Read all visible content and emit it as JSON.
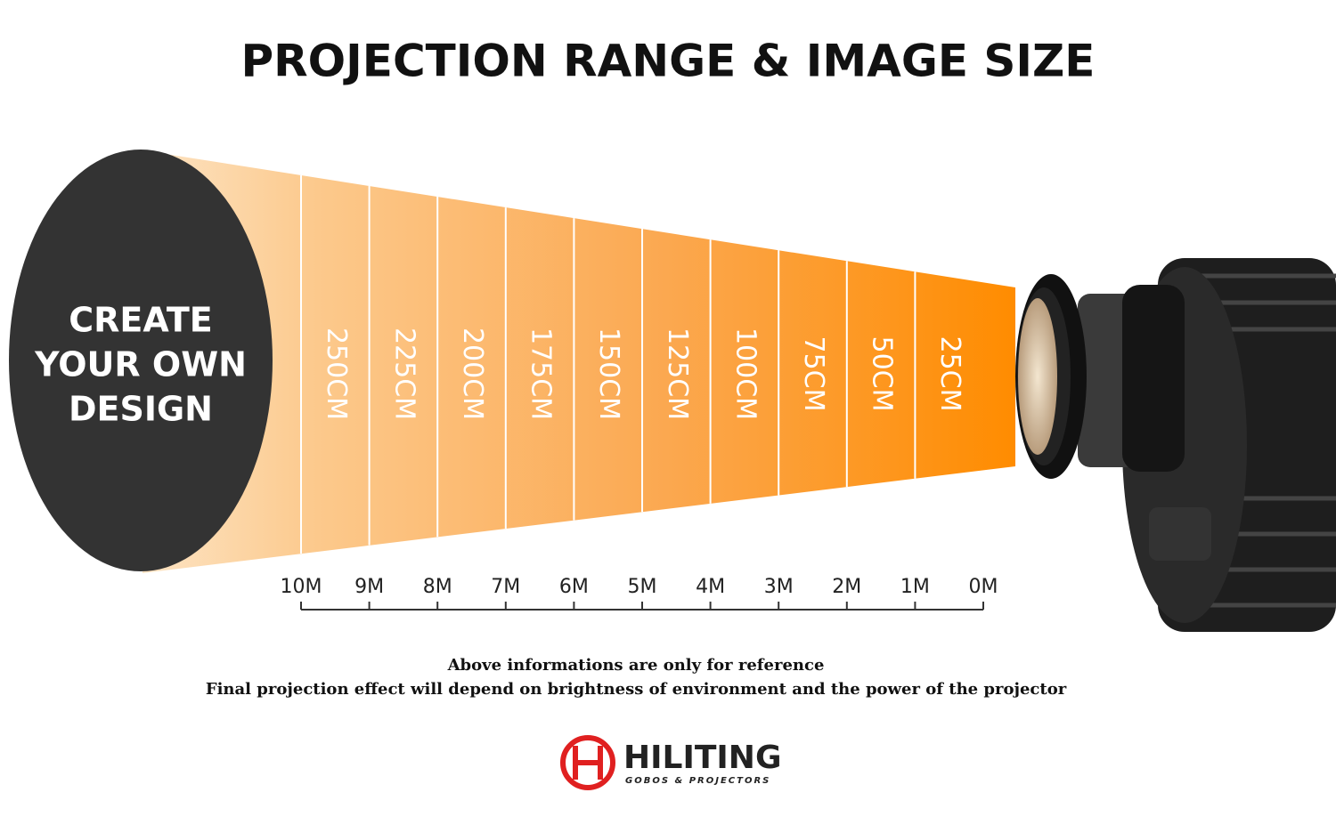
{
  "header": {
    "title": "PROJECTION RANGE & IMAGE SIZE"
  },
  "design_label": [
    "CREATE",
    "YOUR OWN",
    "DESIGN"
  ],
  "image_sizes": [
    "250CM",
    "225CM",
    "200CM",
    "175CM",
    "150CM",
    "125CM",
    "100CM",
    "75CM",
    "50CM",
    "25CM"
  ],
  "distances": [
    "10M",
    "9M",
    "8M",
    "7M",
    "6M",
    "5M",
    "4M",
    "3M",
    "2M",
    "1M",
    "0M"
  ],
  "notes": [
    "Above informations are only for reference",
    "Final projection effect will depend on brightness of environment and the power of the projector"
  ],
  "brand": {
    "name": "HILITING",
    "tagline": "GOBOS & PROJECTORS"
  }
}
